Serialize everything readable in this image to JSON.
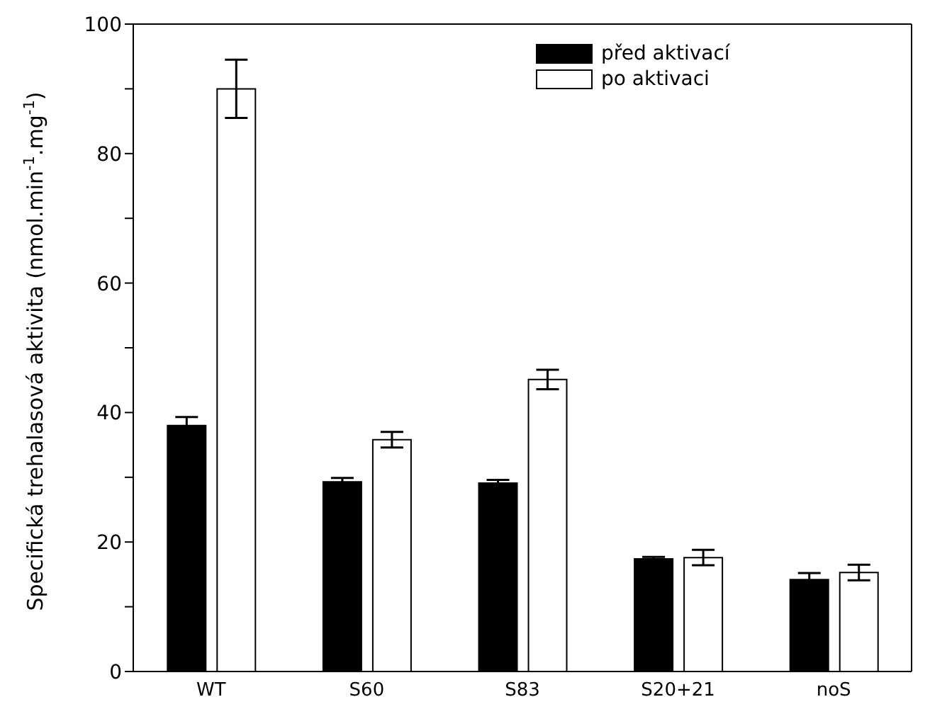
{
  "chart_data": {
    "type": "bar",
    "ylabel": "Specifická trehalasová aktivita (nmol.min$^{-1}$.mg$^{-1}$)",
    "categories": [
      "WT",
      "S60",
      "S83",
      "S20+21",
      "noS"
    ],
    "series": [
      {
        "name": "před aktivací",
        "color": "#000000",
        "values": [
          38,
          29.3,
          29.1,
          17.4,
          14.2
        ],
        "errors": [
          1.3,
          0.6,
          0.5,
          0.3,
          1
        ]
      },
      {
        "name": "po aktivaci",
        "color": "#ffffff",
        "values": [
          90,
          35.8,
          45.1,
          17.6,
          15.3
        ],
        "errors": [
          4.5,
          1.2,
          1.5,
          1.2,
          1.2
        ]
      }
    ],
    "ylim": [
      0,
      100
    ],
    "yticks": [
      0,
      {
        "value": 10,
        "label": null
      },
      20,
      {
        "value": 30,
        "label": null
      },
      40,
      {
        "value": 50,
        "label": null
      },
      60,
      {
        "value": 70,
        "label": null
      },
      80,
      {
        "value": 90,
        "label": null
      },
      100
    ],
    "grid": false,
    "legend": "top right"
  }
}
